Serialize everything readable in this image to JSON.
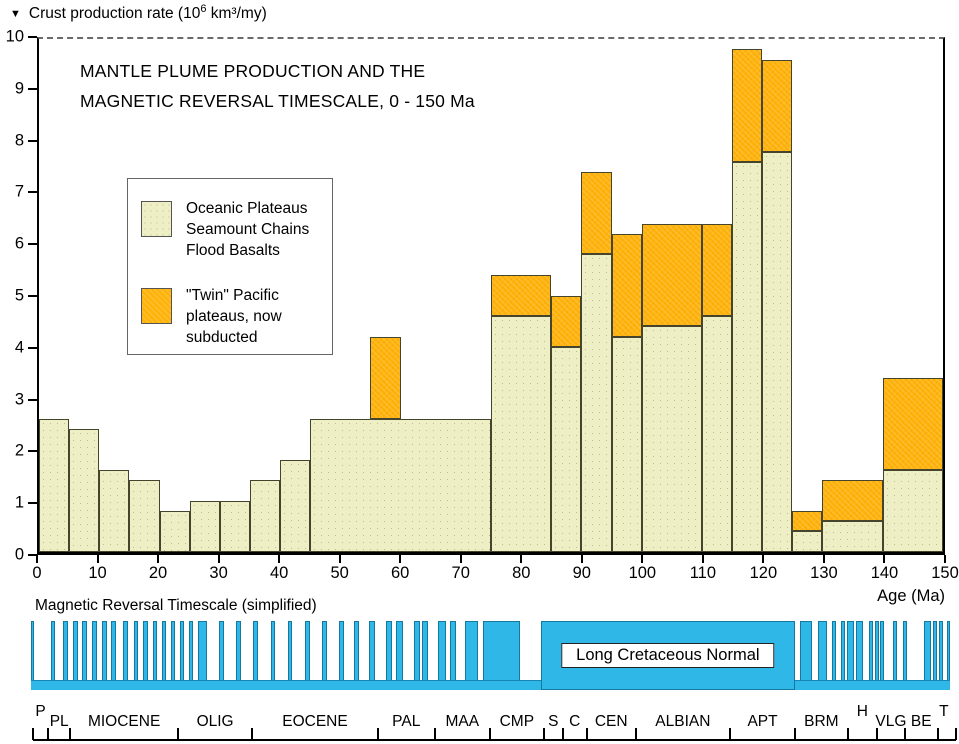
{
  "figure": {
    "y_axis_title": {
      "prefix": "Crust production rate (10",
      "sup": "6",
      "suffix": " km³/my)"
    },
    "title_lines": [
      "MANTLE PLUME PRODUCTION AND THE",
      "MAGNETIC REVERSAL TIMESCALE, 0 - 150 Ma"
    ],
    "x_axis_label": "Age (Ma)",
    "reversal_caption": "Magnetic Reversal Timescale (simplified)"
  },
  "legend": {
    "items": [
      {
        "swatch": "plateau-cream",
        "lines": [
          "Oceanic Plateaus",
          "Seamount Chains",
          "Flood Basalts"
        ]
      },
      {
        "swatch": "twin-orange",
        "lines": [
          "\"Twin\" Pacific",
          "plateaus, now",
          "subducted"
        ]
      }
    ]
  },
  "colors": {
    "plateau_fill": "#EFEFC6",
    "twin_fill": "#FFB30A",
    "reversal_blue": "#2FB7E8",
    "bar_outline": "#45452E",
    "text": "#000000"
  },
  "chart_data": {
    "type": "bar",
    "title": "MANTLE PLUME PRODUCTION AND THE MAGNETIC REVERSAL TIMESCALE, 0 - 150 Ma",
    "xlabel": "Age (Ma)",
    "ylabel": "Crust production rate (10^6 km3/my)",
    "xlim": [
      0,
      150
    ],
    "ylim": [
      0,
      10
    ],
    "x_ticks": [
      0,
      10,
      20,
      30,
      40,
      50,
      60,
      70,
      80,
      90,
      100,
      110,
      120,
      130,
      140,
      150
    ],
    "y_ticks": [
      0,
      1,
      2,
      3,
      4,
      5,
      6,
      7,
      8,
      9,
      10
    ],
    "grid": false,
    "legend_position": "upper-left-inside",
    "series": [
      {
        "name": "Oceanic Plateaus, Seamount Chains, Flood Basalts",
        "note": "bins as [age_start, age_end, rate]",
        "bins": [
          [
            0,
            5,
            2.6
          ],
          [
            5,
            10,
            2.4
          ],
          [
            10,
            15,
            1.6
          ],
          [
            15,
            20,
            1.4
          ],
          [
            20,
            25,
            0.8
          ],
          [
            25,
            30,
            1.0
          ],
          [
            30,
            35,
            1.0
          ],
          [
            35,
            40,
            1.4
          ],
          [
            40,
            45,
            1.8
          ],
          [
            45,
            75,
            2.6
          ],
          [
            75,
            85,
            4.6
          ],
          [
            85,
            90,
            4.0
          ],
          [
            90,
            95,
            5.8
          ],
          [
            95,
            100,
            4.2
          ],
          [
            100,
            110,
            4.4
          ],
          [
            110,
            115,
            4.6
          ],
          [
            115,
            120,
            7.6
          ],
          [
            120,
            125,
            7.8
          ],
          [
            125,
            130,
            0.4
          ],
          [
            130,
            140,
            0.6
          ],
          [
            140,
            150,
            1.6
          ]
        ]
      },
      {
        "name": "\"Twin\" Pacific plateaus, now subducted",
        "note": "stacked segments as [age_start, age_end, rate_bottom, rate_top]",
        "bins": [
          [
            55,
            60,
            2.6,
            4.2
          ],
          [
            75,
            85,
            4.6,
            5.4
          ],
          [
            85,
            90,
            4.0,
            5.0
          ],
          [
            90,
            95,
            5.8,
            7.4
          ],
          [
            95,
            100,
            4.2,
            6.2
          ],
          [
            100,
            110,
            4.4,
            6.4
          ],
          [
            110,
            115,
            4.6,
            6.4
          ],
          [
            115,
            120,
            7.6,
            9.8
          ],
          [
            120,
            125,
            7.8,
            9.6
          ],
          [
            125,
            130,
            0.4,
            0.8
          ],
          [
            130,
            140,
            0.6,
            1.4
          ],
          [
            140,
            150,
            1.6,
            3.4
          ]
        ]
      }
    ],
    "reversal_timescale": {
      "note": "normal-polarity intervals in Ma, drawn as blue bars",
      "normal_intervals_ma": [
        [
          0,
          0.5
        ],
        [
          3.3,
          3.9
        ],
        [
          5.2,
          6.0
        ],
        [
          6.9,
          7.7
        ],
        [
          8.3,
          9.1
        ],
        [
          10.0,
          10.8
        ],
        [
          11.6,
          12.4
        ],
        [
          13.1,
          13.9
        ],
        [
          15.0,
          15.8
        ],
        [
          16.8,
          17.5
        ],
        [
          18.3,
          19.1
        ],
        [
          19.9,
          20.6
        ],
        [
          21.4,
          22.0
        ],
        [
          22.8,
          23.5
        ],
        [
          24.3,
          25.0
        ],
        [
          25.8,
          26.4
        ],
        [
          27.3,
          28.7
        ],
        [
          30.7,
          31.5
        ],
        [
          33.5,
          34.3
        ],
        [
          36.2,
          37.0
        ],
        [
          39.2,
          39.8
        ],
        [
          41.9,
          42.6
        ],
        [
          44.7,
          45.5
        ],
        [
          47.5,
          48.3
        ],
        [
          50.3,
          51.1
        ],
        [
          52.7,
          53.5
        ],
        [
          55.2,
          56.1
        ],
        [
          57.9,
          58.9
        ],
        [
          59.6,
          60.7
        ],
        [
          62.5,
          63.5
        ],
        [
          63.8,
          64.8
        ],
        [
          66.4,
          67.7
        ],
        [
          68.4,
          69.4
        ],
        [
          70.8,
          73.0
        ],
        [
          73.8,
          79.8
        ],
        [
          125.5,
          127.5
        ],
        [
          128.4,
          129.9
        ],
        [
          130.7,
          131.4
        ],
        [
          132.2,
          132.9
        ],
        [
          133.2,
          134.3
        ],
        [
          134.6,
          135.8
        ],
        [
          136.8,
          137.4
        ],
        [
          137.7,
          138.4
        ],
        [
          138.6,
          139.2
        ],
        [
          140.7,
          141.3
        ],
        [
          142.3,
          143.0
        ],
        [
          145.7,
          146.9
        ],
        [
          147.2,
          147.9
        ],
        [
          148.2,
          148.8
        ],
        [
          149.5,
          150.0
        ]
      ],
      "long_normal": {
        "start": 83.2,
        "end": 124.7,
        "label": "Long Cretaceous Normal"
      }
    },
    "epochs": [
      {
        "label": "P",
        "start": 0.3,
        "end": 2.8,
        "raised": true
      },
      {
        "label": "PL",
        "start": 2.8,
        "end": 6.4,
        "raised": false
      },
      {
        "label": "MIOCENE",
        "start": 6.4,
        "end": 24.0,
        "raised": false
      },
      {
        "label": "OLIG",
        "start": 24.0,
        "end": 36.1,
        "raised": false
      },
      {
        "label": "EOCENE",
        "start": 36.1,
        "end": 56.6,
        "raised": false
      },
      {
        "label": "PAL",
        "start": 56.6,
        "end": 65.9,
        "raised": false
      },
      {
        "label": "MAA",
        "start": 65.9,
        "end": 74.9,
        "raised": false
      },
      {
        "label": "CMP",
        "start": 74.9,
        "end": 83.7,
        "raised": false
      },
      {
        "label": "S",
        "start": 83.7,
        "end": 86.8,
        "raised": false
      },
      {
        "label": "C",
        "start": 86.8,
        "end": 90.7,
        "raised": false
      },
      {
        "label": "CEN",
        "start": 90.7,
        "end": 98.7,
        "raised": false
      },
      {
        "label": "ALBIAN",
        "start": 98.7,
        "end": 114.1,
        "raised": false
      },
      {
        "label": "APT",
        "start": 114.1,
        "end": 124.7,
        "raised": false
      },
      {
        "label": "BRM",
        "start": 124.7,
        "end": 133.3,
        "raised": false
      },
      {
        "label": "H",
        "start": 133.3,
        "end": 138.1,
        "raised": true
      },
      {
        "label": "VLG",
        "start": 138.1,
        "end": 142.6,
        "raised": false
      },
      {
        "label": "BE",
        "start": 142.6,
        "end": 148.0,
        "raised": false
      },
      {
        "label": "T",
        "start": 148.0,
        "end": 150.0,
        "raised": true
      }
    ]
  }
}
